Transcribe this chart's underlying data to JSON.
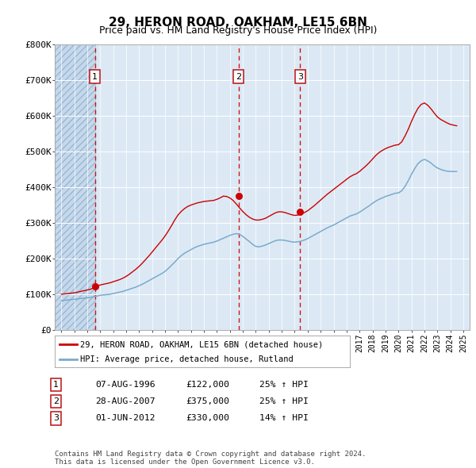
{
  "title": "29, HERON ROAD, OAKHAM, LE15 6BN",
  "subtitle": "Price paid vs. HM Land Registry's House Price Index (HPI)",
  "legend_label_red": "29, HERON ROAD, OAKHAM, LE15 6BN (detached house)",
  "legend_label_blue": "HPI: Average price, detached house, Rutland",
  "footer": "Contains HM Land Registry data © Crown copyright and database right 2024.\nThis data is licensed under the Open Government Licence v3.0.",
  "transactions": [
    {
      "num": 1,
      "date": "07-AUG-1996",
      "year": 1996.6,
      "price": 122000,
      "pct": "25%",
      "dir": "↑"
    },
    {
      "num": 2,
      "date": "28-AUG-2007",
      "year": 2007.66,
      "price": 375000,
      "pct": "25%",
      "dir": "↑"
    },
    {
      "num": 3,
      "date": "01-JUN-2012",
      "year": 2012.42,
      "price": 330000,
      "pct": "14%",
      "dir": "↑"
    }
  ],
  "hpi_years": [
    1994.0,
    1994.25,
    1994.5,
    1994.75,
    1995.0,
    1995.25,
    1995.5,
    1995.75,
    1996.0,
    1996.25,
    1996.5,
    1996.75,
    1997.0,
    1997.25,
    1997.5,
    1997.75,
    1998.0,
    1998.25,
    1998.5,
    1998.75,
    1999.0,
    1999.25,
    1999.5,
    1999.75,
    2000.0,
    2000.25,
    2000.5,
    2000.75,
    2001.0,
    2001.25,
    2001.5,
    2001.75,
    2002.0,
    2002.25,
    2002.5,
    2002.75,
    2003.0,
    2003.25,
    2003.5,
    2003.75,
    2004.0,
    2004.25,
    2004.5,
    2004.75,
    2005.0,
    2005.25,
    2005.5,
    2005.75,
    2006.0,
    2006.25,
    2006.5,
    2006.75,
    2007.0,
    2007.25,
    2007.5,
    2007.75,
    2008.0,
    2008.25,
    2008.5,
    2008.75,
    2009.0,
    2009.25,
    2009.5,
    2009.75,
    2010.0,
    2010.25,
    2010.5,
    2010.75,
    2011.0,
    2011.25,
    2011.5,
    2011.75,
    2012.0,
    2012.25,
    2012.5,
    2012.75,
    2013.0,
    2013.25,
    2013.5,
    2013.75,
    2014.0,
    2014.25,
    2014.5,
    2014.75,
    2015.0,
    2015.25,
    2015.5,
    2015.75,
    2016.0,
    2016.25,
    2016.5,
    2016.75,
    2017.0,
    2017.25,
    2017.5,
    2017.75,
    2018.0,
    2018.25,
    2018.5,
    2018.75,
    2019.0,
    2019.25,
    2019.5,
    2019.75,
    2020.0,
    2020.25,
    2020.5,
    2020.75,
    2021.0,
    2021.25,
    2021.5,
    2021.75,
    2022.0,
    2022.25,
    2022.5,
    2022.75,
    2023.0,
    2023.25,
    2023.5,
    2023.75,
    2024.0,
    2024.25,
    2024.5
  ],
  "hpi_values": [
    82000,
    83000,
    84000,
    85000,
    86000,
    87000,
    88000,
    89000,
    90000,
    91000,
    93000,
    95000,
    97000,
    98000,
    99000,
    100000,
    102000,
    104000,
    106000,
    108000,
    111000,
    114000,
    117000,
    120000,
    124000,
    128000,
    133000,
    138000,
    143000,
    148000,
    153000,
    158000,
    164000,
    172000,
    181000,
    190000,
    200000,
    208000,
    215000,
    220000,
    225000,
    230000,
    234000,
    237000,
    240000,
    242000,
    244000,
    246000,
    249000,
    253000,
    257000,
    261000,
    265000,
    268000,
    270000,
    268000,
    262000,
    255000,
    248000,
    240000,
    234000,
    233000,
    235000,
    238000,
    242000,
    246000,
    250000,
    252000,
    252000,
    251000,
    249000,
    247000,
    246000,
    247000,
    249000,
    252000,
    256000,
    261000,
    266000,
    271000,
    276000,
    281000,
    286000,
    290000,
    294000,
    299000,
    304000,
    309000,
    314000,
    319000,
    322000,
    325000,
    330000,
    336000,
    342000,
    348000,
    355000,
    361000,
    366000,
    370000,
    374000,
    377000,
    380000,
    383000,
    384000,
    390000,
    402000,
    418000,
    436000,
    452000,
    466000,
    474000,
    478000,
    474000,
    468000,
    460000,
    454000,
    450000,
    447000,
    445000,
    444000,
    444000,
    444000
  ],
  "price_years": [
    1994.0,
    1994.25,
    1994.5,
    1994.75,
    1995.0,
    1995.25,
    1995.5,
    1995.75,
    1996.0,
    1996.25,
    1996.5,
    1996.75,
    1997.0,
    1997.25,
    1997.5,
    1997.75,
    1998.0,
    1998.25,
    1998.5,
    1998.75,
    1999.0,
    1999.25,
    1999.5,
    1999.75,
    2000.0,
    2000.25,
    2000.5,
    2000.75,
    2001.0,
    2001.25,
    2001.5,
    2001.75,
    2002.0,
    2002.25,
    2002.5,
    2002.75,
    2003.0,
    2003.25,
    2003.5,
    2003.75,
    2004.0,
    2004.25,
    2004.5,
    2004.75,
    2005.0,
    2005.25,
    2005.5,
    2005.75,
    2006.0,
    2006.25,
    2006.5,
    2006.75,
    2007.0,
    2007.25,
    2007.5,
    2007.75,
    2008.0,
    2008.25,
    2008.5,
    2008.75,
    2009.0,
    2009.25,
    2009.5,
    2009.75,
    2010.0,
    2010.25,
    2010.5,
    2010.75,
    2011.0,
    2011.25,
    2011.5,
    2011.75,
    2012.0,
    2012.25,
    2012.5,
    2012.75,
    2013.0,
    2013.25,
    2013.5,
    2013.75,
    2014.0,
    2014.25,
    2014.5,
    2014.75,
    2015.0,
    2015.25,
    2015.5,
    2015.75,
    2016.0,
    2016.25,
    2016.5,
    2016.75,
    2017.0,
    2017.25,
    2017.5,
    2017.75,
    2018.0,
    2018.25,
    2018.5,
    2018.75,
    2019.0,
    2019.25,
    2019.5,
    2019.75,
    2020.0,
    2020.25,
    2020.5,
    2020.75,
    2021.0,
    2021.25,
    2021.5,
    2021.75,
    2022.0,
    2022.25,
    2022.5,
    2022.75,
    2023.0,
    2023.25,
    2023.5,
    2023.75,
    2024.0,
    2024.25,
    2024.5
  ],
  "price_values": [
    100000,
    101000,
    102000,
    103000,
    104000,
    106000,
    108000,
    110000,
    112000,
    114000,
    118000,
    122000,
    126000,
    128000,
    130000,
    132000,
    135000,
    138000,
    141000,
    145000,
    150000,
    156000,
    163000,
    170000,
    178000,
    187000,
    197000,
    207000,
    218000,
    229000,
    240000,
    251000,
    263000,
    277000,
    292000,
    308000,
    322000,
    332000,
    340000,
    346000,
    350000,
    353000,
    356000,
    358000,
    360000,
    361000,
    362000,
    363000,
    366000,
    370000,
    375000,
    374000,
    370000,
    363000,
    353000,
    342000,
    332000,
    323000,
    316000,
    311000,
    308000,
    308000,
    310000,
    313000,
    318000,
    323000,
    328000,
    331000,
    331000,
    329000,
    326000,
    323000,
    321000,
    322000,
    325000,
    329000,
    334000,
    341000,
    348000,
    356000,
    364000,
    372000,
    380000,
    387000,
    394000,
    401000,
    408000,
    415000,
    422000,
    429000,
    434000,
    438000,
    444000,
    452000,
    460000,
    469000,
    479000,
    489000,
    497000,
    503000,
    508000,
    512000,
    515000,
    518000,
    519000,
    527000,
    543000,
    562000,
    584000,
    604000,
    621000,
    632000,
    636000,
    630000,
    620000,
    608000,
    597000,
    590000,
    585000,
    580000,
    576000,
    574000,
    572000
  ],
  "ylim": [
    0,
    800000
  ],
  "yticks": [
    0,
    100000,
    200000,
    300000,
    400000,
    500000,
    600000,
    700000,
    800000
  ],
  "ytick_labels": [
    "£0",
    "£100K",
    "£200K",
    "£300K",
    "£400K",
    "£500K",
    "£600K",
    "£700K",
    "£800K"
  ],
  "xticks": [
    1994,
    1995,
    1996,
    1997,
    1998,
    1999,
    2000,
    2001,
    2002,
    2003,
    2004,
    2005,
    2006,
    2007,
    2008,
    2009,
    2010,
    2011,
    2012,
    2013,
    2014,
    2015,
    2016,
    2017,
    2018,
    2019,
    2020,
    2021,
    2022,
    2023,
    2024,
    2025
  ],
  "xlim": [
    1993.5,
    2025.5
  ],
  "bg_color": "#dce9f5",
  "hatch_bg_color": "#c5d8ec",
  "grid_color": "#ffffff",
  "red_color": "#cc0000",
  "blue_color": "#7aaacc",
  "dashed_color": "#cc0000"
}
